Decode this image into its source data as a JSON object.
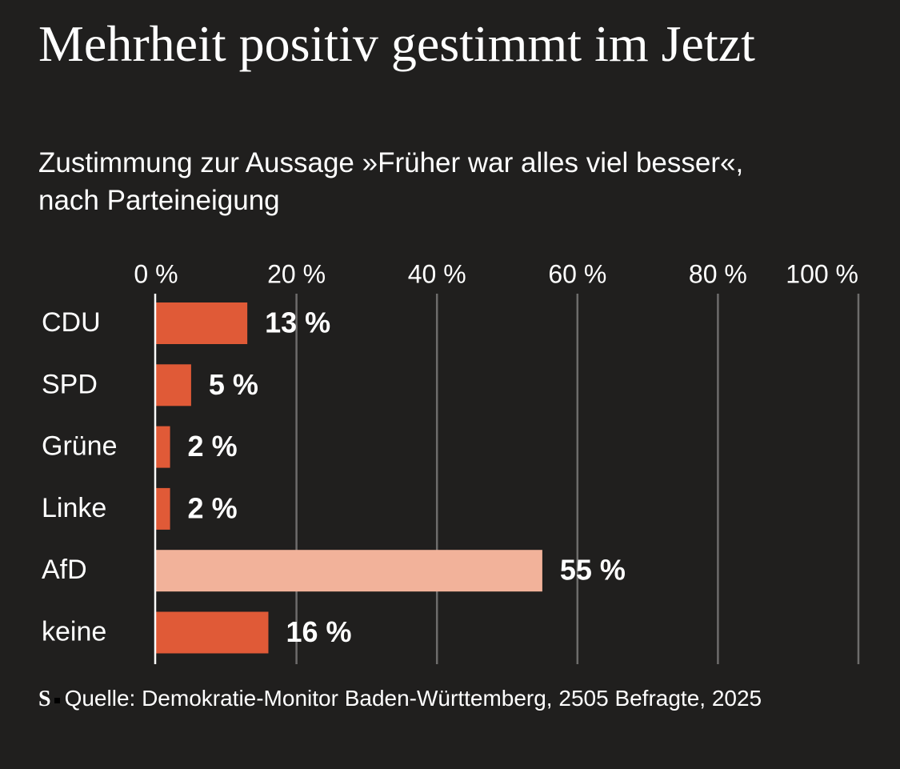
{
  "chart_data": {
    "type": "hbar",
    "title": "Mehrheit positiv gestimmt im Jetzt",
    "subtitle": "Zustimmung zur Aussage »Früher war alles viel besser«, nach Parteineigung",
    "categories": [
      "CDU",
      "SPD",
      "Grüne",
      "Linke",
      "AfD",
      "keine"
    ],
    "values": [
      13,
      5,
      2,
      2,
      55,
      16
    ],
    "value_labels": [
      "13 %",
      "5 %",
      "2 %",
      "2 %",
      "55 %",
      "16 %"
    ],
    "colors": [
      "#e05a37",
      "#e05a37",
      "#e05a37",
      "#e05a37",
      "#f2b29a",
      "#e05a37"
    ],
    "xlim": [
      0,
      100
    ],
    "xticks": [
      {
        "value": 0,
        "label": "0 %"
      },
      {
        "value": 20,
        "label": "20 %"
      },
      {
        "value": 40,
        "label": "40 %"
      },
      {
        "value": 60,
        "label": "60 %"
      },
      {
        "value": 80,
        "label": "80 %"
      },
      {
        "value": 100,
        "label": "100 %"
      }
    ],
    "grid": true,
    "logo": "S",
    "source": "Quelle: Demokratie-Monitor Baden-Württemberg, 2505 Befragte, 2025"
  }
}
